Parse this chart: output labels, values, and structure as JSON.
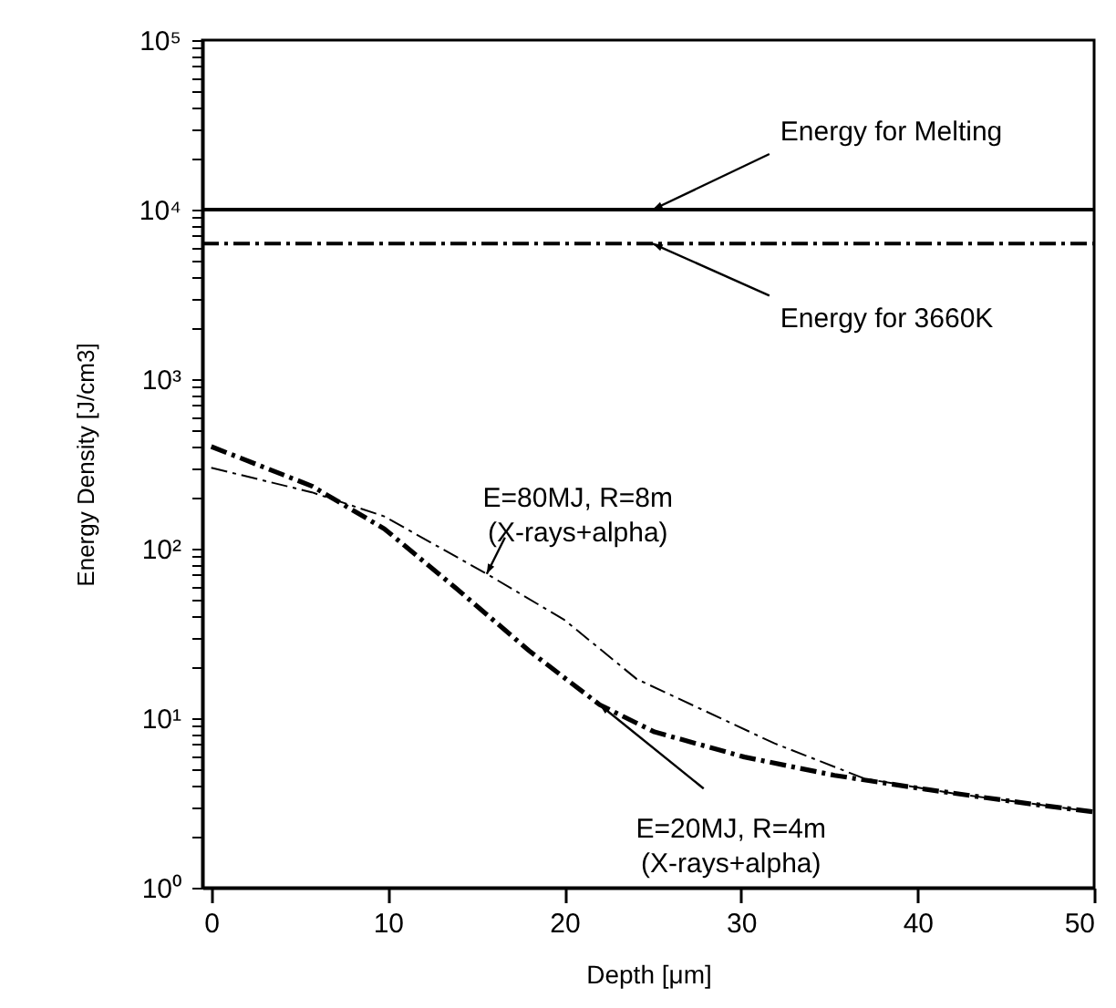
{
  "chart_data": {
    "type": "line",
    "xlabel": "Depth [μm]",
    "ylabel": "Energy Density [J/cm3]",
    "log": "y",
    "grid": false,
    "legend": false,
    "marker": "none",
    "xlim": [
      -0.5,
      50
    ],
    "xticks": [
      0,
      10,
      20,
      30,
      40,
      50
    ],
    "ylim": [
      1,
      100000
    ],
    "yticks": [
      {
        "value": 1,
        "label": "10⁰"
      },
      {
        "value": 2,
        "label": null
      },
      {
        "value": 3,
        "label": null
      },
      {
        "value": 4,
        "label": null
      },
      {
        "value": 5,
        "label": null
      },
      {
        "value": 6,
        "label": null
      },
      {
        "value": 7,
        "label": null
      },
      {
        "value": 8,
        "label": null
      },
      {
        "value": 9,
        "label": null
      },
      {
        "value": 10,
        "label": "10¹"
      },
      {
        "value": 20,
        "label": null
      },
      {
        "value": 30,
        "label": null
      },
      {
        "value": 40,
        "label": null
      },
      {
        "value": 50,
        "label": null
      },
      {
        "value": 60,
        "label": null
      },
      {
        "value": 70,
        "label": null
      },
      {
        "value": 80,
        "label": null
      },
      {
        "value": 90,
        "label": null
      },
      {
        "value": 100,
        "label": "10²"
      },
      {
        "value": 200,
        "label": null
      },
      {
        "value": 300,
        "label": null
      },
      {
        "value": 400,
        "label": null
      },
      {
        "value": 500,
        "label": null
      },
      {
        "value": 600,
        "label": null
      },
      {
        "value": 700,
        "label": null
      },
      {
        "value": 800,
        "label": null
      },
      {
        "value": 900,
        "label": null
      },
      {
        "value": 1000,
        "label": "10³"
      },
      {
        "value": 2000,
        "label": null
      },
      {
        "value": 3000,
        "label": null
      },
      {
        "value": 4000,
        "label": null
      },
      {
        "value": 5000,
        "label": null
      },
      {
        "value": 6000,
        "label": null
      },
      {
        "value": 7000,
        "label": null
      },
      {
        "value": 8000,
        "label": null
      },
      {
        "value": 9000,
        "label": null
      },
      {
        "value": 10000,
        "label": "10⁴"
      },
      {
        "value": 20000,
        "label": null
      },
      {
        "value": 30000,
        "label": null
      },
      {
        "value": 40000,
        "label": null
      },
      {
        "value": 50000,
        "label": null
      },
      {
        "value": 60000,
        "label": null
      },
      {
        "value": 70000,
        "label": null
      },
      {
        "value": 80000,
        "label": null
      },
      {
        "value": 90000,
        "label": null
      },
      {
        "value": 100000,
        "label": "10⁵"
      }
    ],
    "ref_lines": [
      {
        "axis": "y",
        "value": 10000,
        "label": "Energy for Melting",
        "color": "#000000",
        "line_style": "solid"
      },
      {
        "axis": "y",
        "value": 6300,
        "label": "Energy for 3660K",
        "color": "#000000",
        "line_style": "dashed"
      }
    ],
    "series": [
      {
        "name": "E=80MJ, R=8m\n(X-rays+alpha)",
        "color": "#000000",
        "line_style": "dashed",
        "x": [
          0,
          5.7,
          9.8,
          15.6,
          20,
          24.1,
          31.9,
          37,
          42,
          50
        ],
        "values": [
          300,
          215,
          155,
          71,
          38,
          17,
          7.1,
          4.4,
          3.6,
          2.8
        ]
      },
      {
        "name": "E=20MJ, R=4m\n(X-rays+alpha)",
        "color": "#000000",
        "line_style": "dashed",
        "x": [
          0,
          5.7,
          9.8,
          13.9,
          18,
          22,
          25.1,
          30.2,
          35.3,
          40.5,
          46.6,
          50
        ],
        "values": [
          400,
          234,
          131,
          58,
          25,
          12,
          8.3,
          5.9,
          4.6,
          3.8,
          3.1,
          2.8
        ]
      }
    ]
  }
}
